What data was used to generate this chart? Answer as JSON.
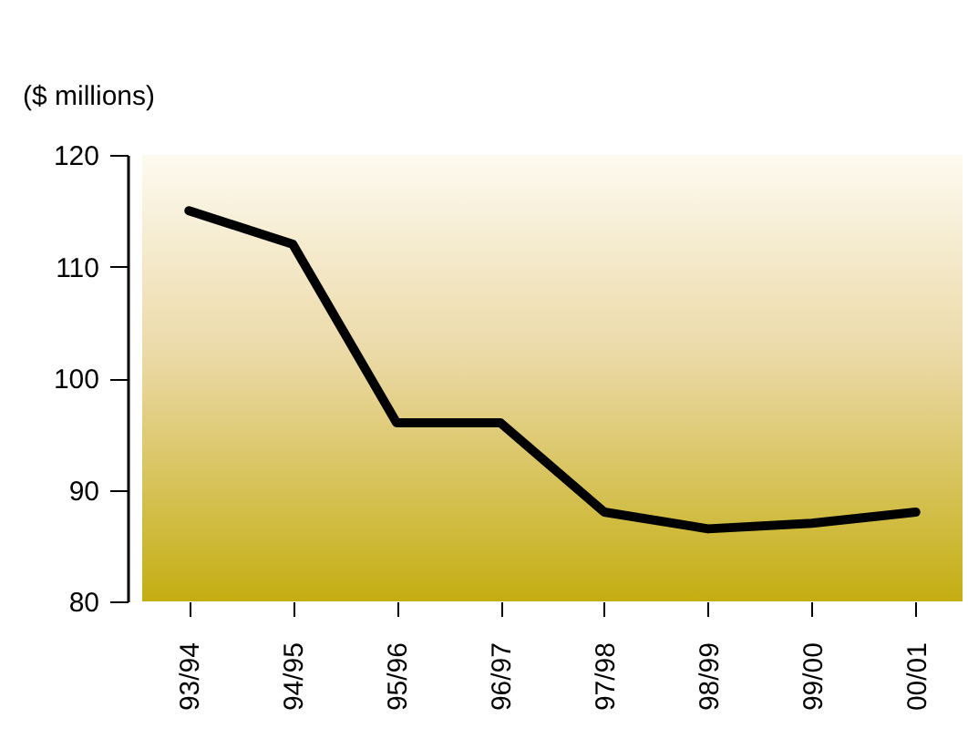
{
  "chart_data": {
    "type": "line",
    "ylabel": "($ millions)",
    "categories": [
      "93/94",
      "94/95",
      "95/96",
      "96/97",
      "97/98",
      "98/99",
      "99/00",
      "00/01"
    ],
    "series": [
      {
        "color": "#000000",
        "values": [
          115,
          112,
          96,
          96,
          88,
          86.5,
          87,
          88
        ]
      }
    ],
    "ylim": [
      80,
      120
    ],
    "yticks": [
      80,
      90,
      100,
      110,
      120
    ],
    "grid": false,
    "legend": false,
    "marker": "none",
    "line_style": "solid"
  }
}
